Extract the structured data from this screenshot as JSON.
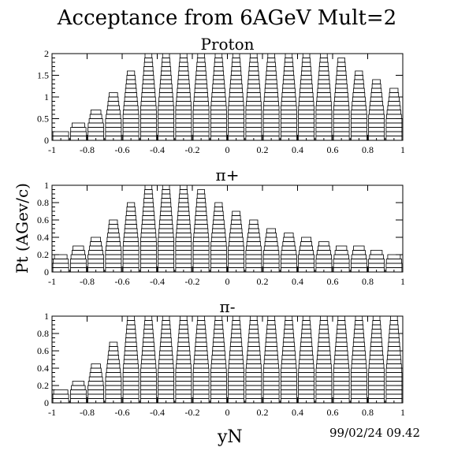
{
  "page_title": "Acceptance from 6AGeV Mult=2",
  "timestamp": "99/02/24   09.42",
  "ylabel": "Pt (AGev/c)",
  "xlabel": "yN",
  "chart_data": [
    {
      "type": "heatmap",
      "title": "Proton",
      "xlim": [
        -1,
        1
      ],
      "ylim": [
        0,
        2
      ],
      "x_ticks": [
        "-1",
        "-0.8",
        "-0.6",
        "-0.4",
        "-0.2",
        "0",
        "0.2",
        "0.4",
        "0.6",
        "0.8",
        "1"
      ],
      "y_ticks": [
        "0",
        "0.5",
        "1",
        "1.5",
        "2"
      ],
      "pt_max_per_bin": [
        0.2,
        0.4,
        0.7,
        1.1,
        1.6,
        2.0,
        2.0,
        2.0,
        2.0,
        2.0,
        2.0,
        2.0,
        2.0,
        2.0,
        2.0,
        2.0,
        1.9,
        1.6,
        1.4,
        1.2
      ]
    },
    {
      "type": "heatmap",
      "title": "π+",
      "xlim": [
        -1,
        1
      ],
      "ylim": [
        0,
        1
      ],
      "x_ticks": [
        "-1",
        "-0.8",
        "-0.6",
        "-0.4",
        "-0.2",
        "0",
        "0.2",
        "0.4",
        "0.6",
        "0.8",
        "1"
      ],
      "y_ticks": [
        "0",
        "0.2",
        "0.4",
        "0.6",
        "0.8",
        "1"
      ],
      "pt_max_per_bin": [
        0.2,
        0.3,
        0.4,
        0.6,
        0.8,
        1.0,
        1.0,
        1.0,
        0.95,
        0.8,
        0.7,
        0.6,
        0.5,
        0.45,
        0.4,
        0.35,
        0.32,
        0.28,
        0.25,
        0.22
      ]
    },
    {
      "type": "heatmap",
      "title": "π-",
      "xlim": [
        -1,
        1
      ],
      "ylim": [
        0,
        1
      ],
      "x_ticks": [
        "-1",
        "-0.8",
        "-0.6",
        "-0.4",
        "-0.2",
        "0",
        "0.2",
        "0.4",
        "0.6",
        "0.8",
        "1"
      ],
      "y_ticks": [
        "0",
        "0.2",
        "0.4",
        "0.6",
        "0.8",
        "1"
      ],
      "pt_max_per_bin": [
        0.15,
        0.25,
        0.45,
        0.7,
        1.0,
        1.0,
        1.0,
        1.0,
        1.0,
        1.0,
        1.0,
        1.0,
        1.0,
        1.0,
        1.0,
        1.0,
        1.0,
        1.0,
        1.0,
        1.0
      ]
    }
  ]
}
